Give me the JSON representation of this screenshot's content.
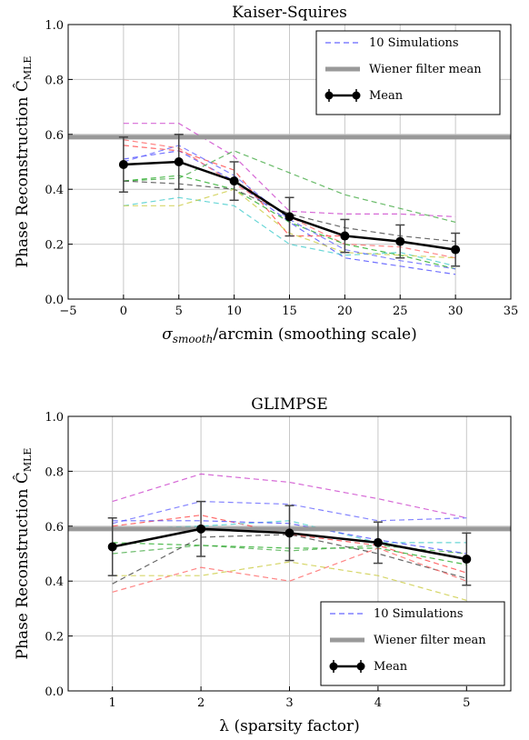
{
  "chart_data": [
    {
      "type": "line",
      "title": "Kaiser-Squires",
      "xlabel": "σsmooth/arcmin (smoothing scale)",
      "xlabel_parts": {
        "symbol": "σ",
        "subscript": "smooth",
        "rest": "/arcmin (smoothing scale)"
      },
      "ylabel": "Phase Reconstruction ĈMLE",
      "ylabel_parts": {
        "text": "Phase Reconstruction ",
        "symbol": "Ĉ",
        "subscript": "MLE"
      },
      "xlim": [
        -5,
        35
      ],
      "ylim": [
        0.0,
        1.0
      ],
      "xticks": [
        -5,
        0,
        5,
        10,
        15,
        20,
        25,
        30,
        35
      ],
      "yticks": [
        0.0,
        0.2,
        0.4,
        0.6,
        0.8,
        1.0
      ],
      "grid": true,
      "legend_position": "top-right",
      "legend": [
        "10 Simulations",
        "Wiener filter mean",
        "Mean"
      ],
      "x": [
        0,
        5,
        10,
        15,
        20,
        25,
        30
      ],
      "wiener_mean": 0.59,
      "mean": {
        "name": "Mean",
        "values": [
          0.49,
          0.5,
          0.43,
          0.3,
          0.23,
          0.21,
          0.18
        ],
        "err": [
          0.1,
          0.1,
          0.07,
          0.07,
          0.06,
          0.06,
          0.06
        ]
      },
      "simulations": [
        {
          "color": "#4d4dff",
          "values": [
            0.51,
            0.54,
            0.43,
            0.28,
            0.15,
            0.12,
            0.09
          ]
        },
        {
          "color": "#cc44cc",
          "values": [
            0.64,
            0.64,
            0.52,
            0.32,
            0.31,
            0.31,
            0.3
          ]
        },
        {
          "color": "#ff4444",
          "values": [
            0.56,
            0.54,
            0.47,
            0.23,
            0.23,
            0.21,
            0.18
          ]
        },
        {
          "color": "#ff6666",
          "values": [
            0.58,
            0.55,
            0.42,
            0.3,
            0.2,
            0.19,
            0.15
          ]
        },
        {
          "color": "#44aa44",
          "values": [
            0.43,
            0.44,
            0.54,
            0.46,
            0.38,
            0.33,
            0.28
          ]
        },
        {
          "color": "#22aa22",
          "values": [
            0.43,
            0.45,
            0.4,
            0.28,
            0.2,
            0.16,
            0.11
          ]
        },
        {
          "color": "#444444",
          "values": [
            0.43,
            0.42,
            0.4,
            0.31,
            0.26,
            0.23,
            0.21
          ]
        },
        {
          "color": "#44cccc",
          "values": [
            0.34,
            0.37,
            0.34,
            0.2,
            0.16,
            0.17,
            0.12
          ]
        },
        {
          "color": "#cccc44",
          "values": [
            0.34,
            0.34,
            0.4,
            0.24,
            0.17,
            0.16,
            0.15
          ]
        },
        {
          "color": "#6666ff",
          "values": [
            0.5,
            0.56,
            0.45,
            0.29,
            0.18,
            0.14,
            0.11
          ]
        }
      ]
    },
    {
      "type": "line",
      "title": "GLIMPSE",
      "xlabel": "λ (sparsity factor)",
      "ylabel": "Phase Reconstruction ĈMLE",
      "ylabel_parts": {
        "text": "Phase Reconstruction ",
        "symbol": "Ĉ",
        "subscript": "MLE"
      },
      "xlim": [
        0.5,
        5.5
      ],
      "ylim": [
        0.0,
        1.0
      ],
      "xticks": [
        1,
        2,
        3,
        4,
        5
      ],
      "yticks": [
        0.0,
        0.2,
        0.4,
        0.6,
        0.8,
        1.0
      ],
      "grid": true,
      "legend_position": "bottom-right",
      "legend": [
        "10 Simulations",
        "Wiener filter mean",
        "Mean"
      ],
      "x": [
        1,
        2,
        3,
        4,
        5
      ],
      "wiener_mean": 0.59,
      "mean": {
        "name": "Mean",
        "values": [
          0.525,
          0.59,
          0.575,
          0.54,
          0.48
        ],
        "err": [
          0.105,
          0.1,
          0.1,
          0.075,
          0.095
        ]
      },
      "simulations": [
        {
          "color": "#cc44cc",
          "values": [
            0.69,
            0.79,
            0.76,
            0.7,
            0.63
          ]
        },
        {
          "color": "#6666ff",
          "values": [
            0.61,
            0.69,
            0.68,
            0.62,
            0.63
          ]
        },
        {
          "color": "#ff4444",
          "values": [
            0.6,
            0.64,
            0.57,
            0.53,
            0.43
          ]
        },
        {
          "color": "#44cccc",
          "values": [
            0.59,
            0.6,
            0.62,
            0.54,
            0.54
          ]
        },
        {
          "color": "#22aa22",
          "values": [
            0.54,
            0.53,
            0.52,
            0.52,
            0.46
          ]
        },
        {
          "color": "#44aa44",
          "values": [
            0.5,
            0.53,
            0.51,
            0.53,
            0.5
          ]
        },
        {
          "color": "#444444",
          "values": [
            0.39,
            0.56,
            0.57,
            0.5,
            0.41
          ]
        },
        {
          "color": "#ff6666",
          "values": [
            0.36,
            0.45,
            0.4,
            0.52,
            0.4
          ]
        },
        {
          "color": "#cccc44",
          "values": [
            0.42,
            0.42,
            0.47,
            0.42,
            0.33
          ]
        },
        {
          "color": "#4d4dff",
          "values": [
            0.62,
            0.62,
            0.61,
            0.55,
            0.5
          ]
        }
      ]
    }
  ]
}
